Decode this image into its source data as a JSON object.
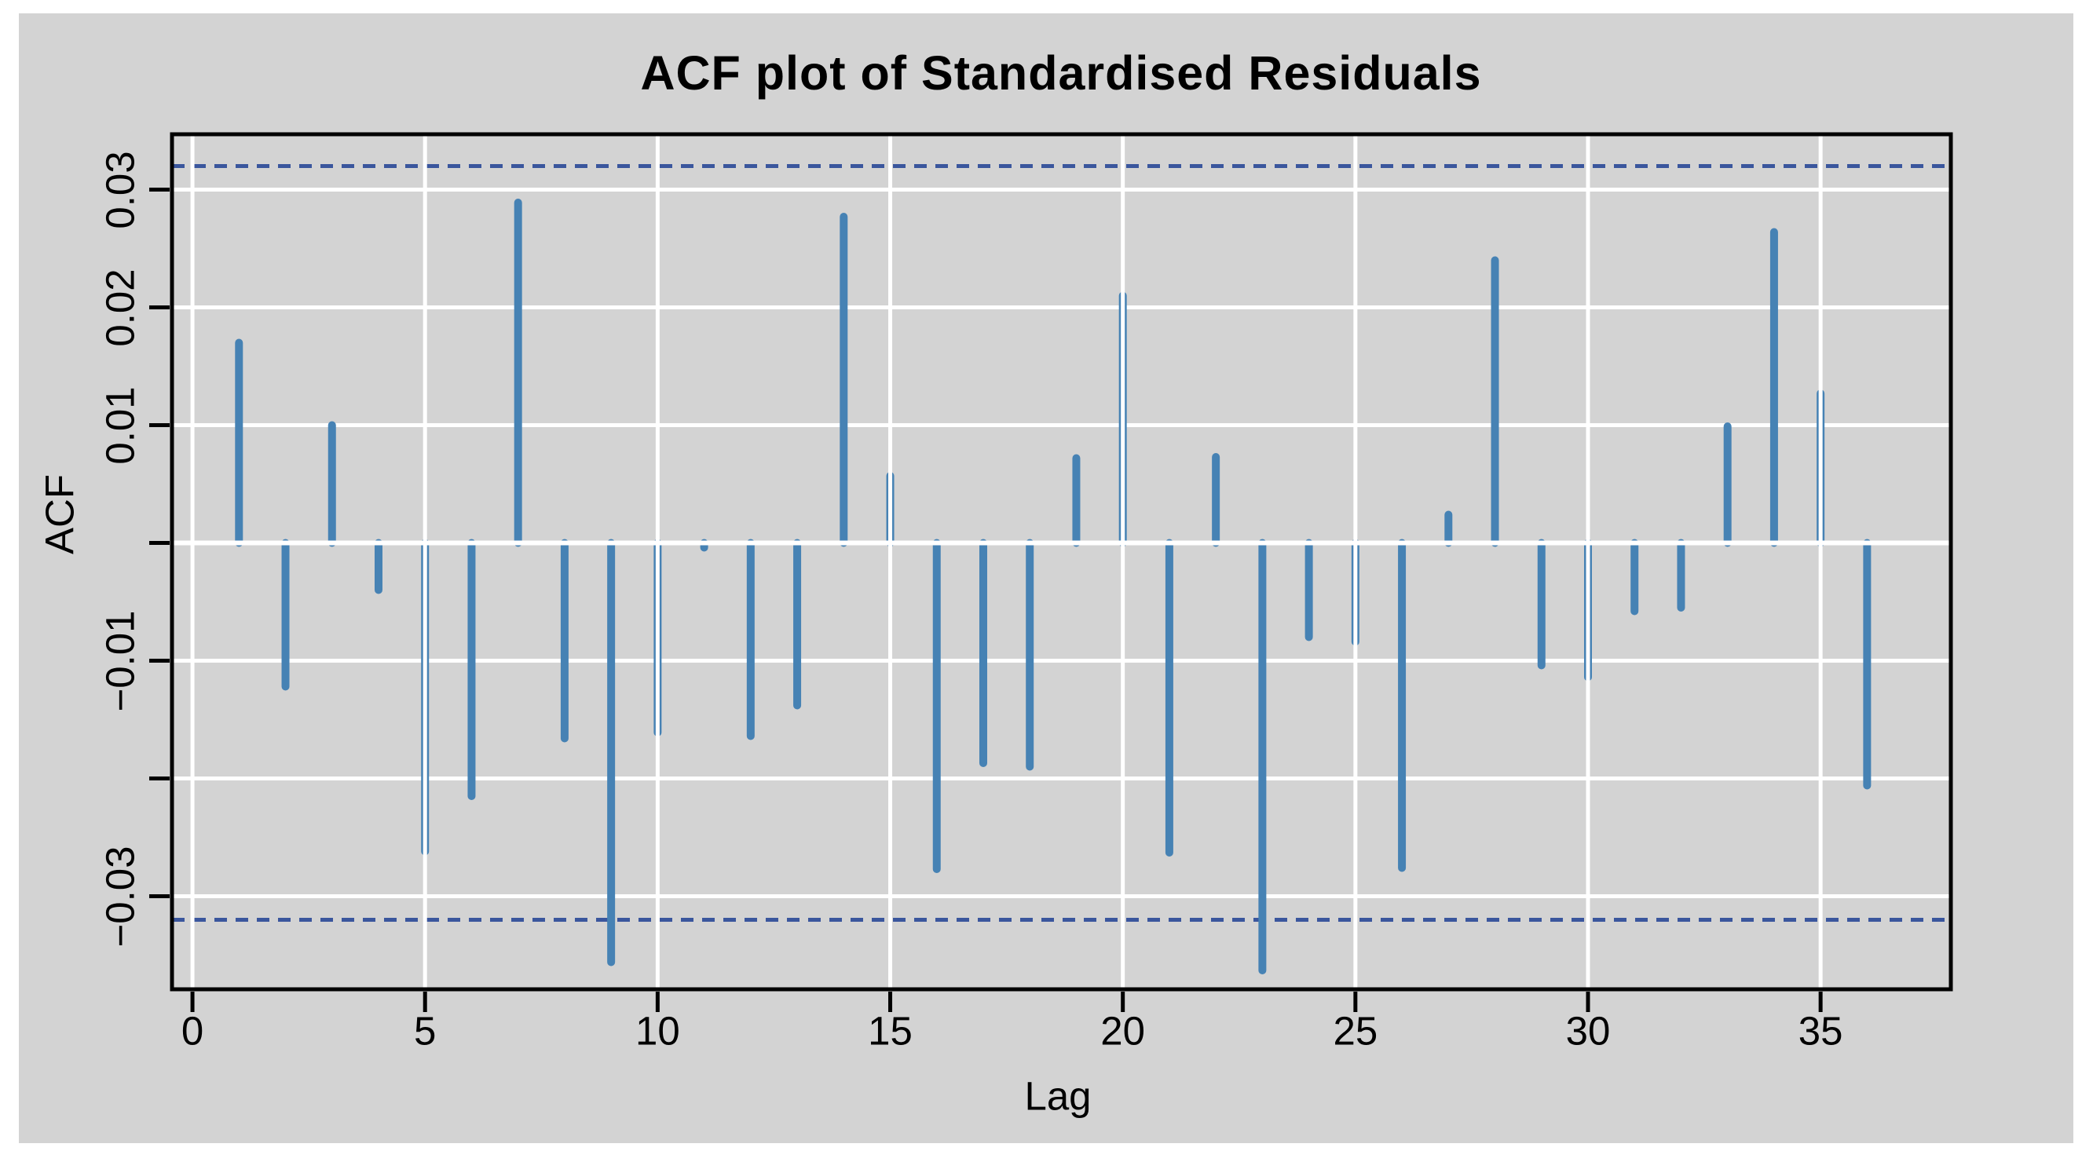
{
  "chart_data": {
    "type": "bar",
    "subtype": "acf-stick-plot",
    "title": "ACF plot of Standardised Residuals",
    "xlabel": "Lag",
    "ylabel": "ACF",
    "x": [
      1,
      2,
      3,
      4,
      5,
      6,
      7,
      8,
      9,
      10,
      11,
      12,
      13,
      14,
      15,
      16,
      17,
      18,
      19,
      20,
      21,
      22,
      23,
      24,
      25,
      26,
      27,
      28,
      29,
      30,
      31,
      32,
      33,
      34,
      35,
      36
    ],
    "values": [
      0.017,
      -0.0122,
      0.01,
      -0.004,
      -0.0262,
      -0.0215,
      0.0289,
      -0.0166,
      -0.0356,
      -0.0161,
      -0.0004,
      -0.0164,
      -0.0138,
      0.0277,
      0.0057,
      -0.0277,
      -0.0187,
      -0.019,
      0.0072,
      0.021,
      -0.0263,
      0.0073,
      -0.0363,
      -0.008,
      -0.0084,
      -0.0276,
      0.0024,
      0.024,
      -0.0104,
      -0.0114,
      -0.0058,
      -0.0055,
      0.0099,
      0.0264,
      0.0127,
      -0.0206
    ],
    "confidence_bounds": [
      0.032,
      -0.032
    ],
    "x_ticks": [
      {
        "value": 0,
        "label": "0"
      },
      {
        "value": 5,
        "label": "5"
      },
      {
        "value": 10,
        "label": "10"
      },
      {
        "value": 15,
        "label": "15"
      },
      {
        "value": 20,
        "label": "20"
      },
      {
        "value": 25,
        "label": "25"
      },
      {
        "value": 30,
        "label": "30"
      },
      {
        "value": 35,
        "label": "35"
      }
    ],
    "y_ticks": [
      {
        "value": 0.03,
        "label": "0.03"
      },
      {
        "value": 0.02,
        "label": "0.02"
      },
      {
        "value": 0.01,
        "label": "0.01"
      },
      {
        "value": 0,
        "label": ""
      },
      {
        "value": -0.01,
        "label": "−0.01"
      },
      {
        "value": -0.02,
        "label": ""
      },
      {
        "value": -0.03,
        "label": "−0.03"
      }
    ],
    "xlim": [
      -0.44,
      37.8
    ],
    "ylim": [
      -0.0379,
      0.0347
    ],
    "grid": true,
    "legend_position": "none",
    "colors": {
      "bar": "#4682B4",
      "confidence_line": "#3A569D",
      "grid": "#FFFFFF",
      "zero_line": "#FFFFFF",
      "panel_background": "#D3D3D3",
      "axis": "#000000",
      "text": "#000000",
      "page_background": "#FFFFFF"
    }
  }
}
